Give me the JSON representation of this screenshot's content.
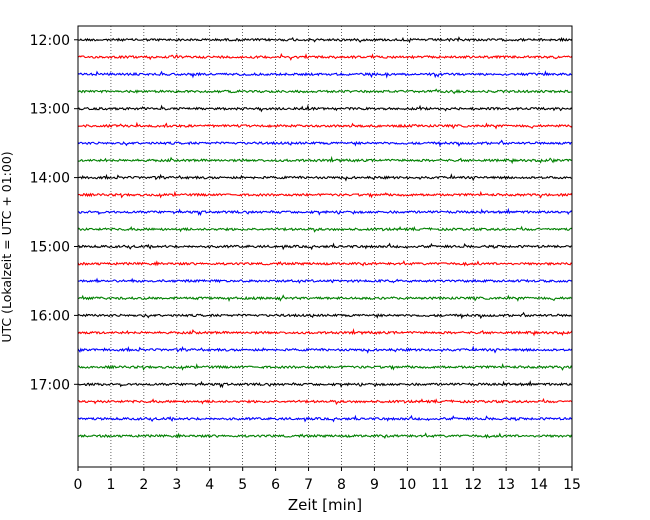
{
  "chart_data": {
    "type": "line",
    "title": "",
    "xlabel": "Zeit  [min]",
    "ylabel": "UTC (Lokalzeit = UTC + 01:00)",
    "xlim": [
      0,
      15
    ],
    "x_ticks": [
      "0",
      "1",
      "2",
      "3",
      "4",
      "5",
      "6",
      "7",
      "8",
      "9",
      "10",
      "11",
      "12",
      "13",
      "14",
      "15"
    ],
    "y_tick_labels": [
      "12:00",
      "13:00",
      "14:00",
      "15:00",
      "16:00",
      "17:00"
    ],
    "y_tick_hours": [
      12,
      13,
      14,
      15,
      16,
      17
    ],
    "ylim_hours": [
      11.8,
      18.2
    ],
    "vertical_grid": "dotted",
    "trace_interval_minutes": 15,
    "trace_start_times": [
      "12:00",
      "12:15",
      "12:30",
      "12:45",
      "13:00",
      "13:15",
      "13:30",
      "13:45",
      "14:00",
      "14:15",
      "14:30",
      "14:45",
      "15:00",
      "15:15",
      "15:30",
      "15:45",
      "16:00",
      "16:15",
      "16:30",
      "16:45",
      "17:00",
      "17:15",
      "17:30",
      "17:45"
    ],
    "trace_colors": [
      "#000000",
      "#ff0000",
      "#0000ff",
      "#008000"
    ]
  }
}
